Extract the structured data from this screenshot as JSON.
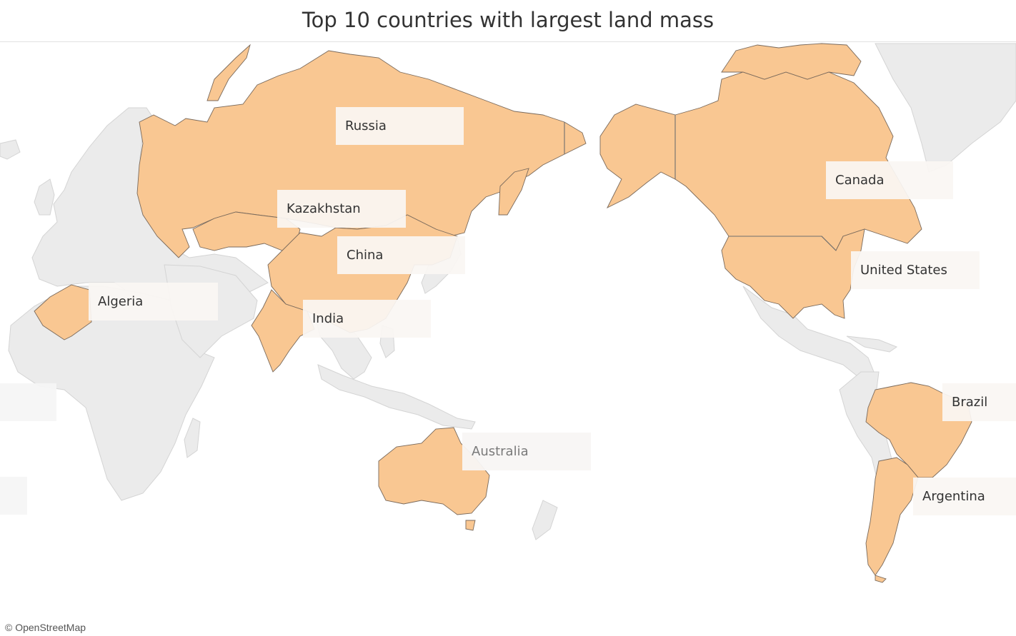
{
  "title": "Top 10 countries with largest land mass",
  "attribution": "© OpenStreetMap",
  "colors": {
    "highlight": "#f9c792",
    "land": "#ebebeb",
    "water": "#ffffff",
    "label_background": "#faf6f3",
    "text": "#333333"
  },
  "countries": [
    {
      "name": "Russia",
      "highlighted": true
    },
    {
      "name": "Kazakhstan",
      "highlighted": true
    },
    {
      "name": "China",
      "highlighted": true
    },
    {
      "name": "India",
      "highlighted": true
    },
    {
      "name": "Algeria",
      "highlighted": true
    },
    {
      "name": "Australia",
      "highlighted": true
    },
    {
      "name": "Canada",
      "highlighted": true
    },
    {
      "name": "United States",
      "highlighted": true
    },
    {
      "name": "Brazil",
      "highlighted": true
    },
    {
      "name": "Argentina",
      "highlighted": true
    }
  ]
}
